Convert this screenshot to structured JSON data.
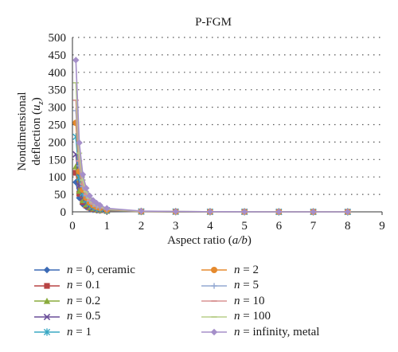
{
  "chart_data": {
    "type": "line",
    "title": "P-FGM",
    "xlabel_main": "Aspect ratio (",
    "xlabel_var": "a/b",
    "xlabel_end": ")",
    "ylabel_line1": "Nondimensional",
    "ylabel_line2_main": "deflection (",
    "ylabel_line2_var": "u",
    "ylabel_line2_sub": "z",
    "ylabel_line2_end": ")",
    "xlim": [
      0,
      9
    ],
    "ylim": [
      0,
      500
    ],
    "xticks": [
      "0",
      "1",
      "2",
      "3",
      "4",
      "5",
      "6",
      "7",
      "8",
      "9"
    ],
    "yticks": [
      "0",
      "50",
      "100",
      "150",
      "200",
      "250",
      "300",
      "350",
      "400",
      "450",
      "500"
    ],
    "grid": "horizontal dotted",
    "legend_position": "bottom",
    "x": [
      0.1,
      0.2,
      0.3,
      0.4,
      0.5,
      0.6,
      0.7,
      0.8,
      1,
      2,
      3,
      4,
      5,
      6,
      7,
      8
    ],
    "series": [
      {
        "name": "n = 0, ceramic",
        "var": "n",
        "rest": " = 0, ceramic",
        "color": "#3b6ab5",
        "marker": "diamond",
        "values": [
          85,
          40,
          22,
          14,
          9,
          6,
          4.5,
          3.5,
          2,
          0.5,
          0.2,
          0.1,
          0.1,
          0,
          0,
          0
        ]
      },
      {
        "name": "n = 0.1",
        "var": "n",
        "rest": " = 0.1",
        "color": "#b84444",
        "marker": "square",
        "values": [
          112,
          52,
          28,
          18,
          12,
          8,
          6,
          4.5,
          2.8,
          0.6,
          0.3,
          0.1,
          0.1,
          0,
          0,
          0
        ]
      },
      {
        "name": "n = 0.2",
        "var": "n",
        "rest": " = 0.2",
        "color": "#8aab3c",
        "marker": "triangle",
        "values": [
          130,
          60,
          33,
          21,
          14,
          10,
          7,
          5.5,
          3.2,
          0.7,
          0.3,
          0.1,
          0.1,
          0,
          0,
          0
        ]
      },
      {
        "name": "n = 0.5",
        "var": "n",
        "rest": " = 0.5",
        "color": "#6a4d99",
        "marker": "x",
        "values": [
          165,
          75,
          41,
          26,
          17,
          12,
          9,
          7,
          4,
          0.9,
          0.4,
          0.2,
          0.1,
          0,
          0,
          0
        ]
      },
      {
        "name": "n = 1",
        "var": "n",
        "rest": " = 1",
        "color": "#3aa8c4",
        "marker": "star",
        "values": [
          215,
          98,
          53,
          34,
          23,
          16,
          12,
          9,
          5,
          1.1,
          0.5,
          0.2,
          0.1,
          0,
          0,
          0
        ]
      },
      {
        "name": "n = 2",
        "var": "n",
        "rest": " = 2",
        "color": "#e58a2e",
        "marker": "circle",
        "values": [
          255,
          116,
          63,
          40,
          27,
          19,
          14,
          11,
          6,
          1.3,
          0.5,
          0.2,
          0.1,
          0,
          0,
          0
        ]
      },
      {
        "name": "n = 5",
        "var": "n",
        "rest": " = 5",
        "color": "#93a9d2",
        "marker": "plus",
        "values": [
          290,
          132,
          72,
          46,
          31,
          22,
          16,
          12,
          7,
          1.5,
          0.6,
          0.3,
          0.1,
          0,
          0,
          0
        ]
      },
      {
        "name": "n = 10",
        "var": "n",
        "rest": " = 10",
        "color": "#d99393",
        "marker": "dash",
        "values": [
          320,
          146,
          79,
          50,
          34,
          24,
          18,
          14,
          7.5,
          1.6,
          0.7,
          0.3,
          0.2,
          0,
          0,
          0
        ]
      },
      {
        "name": "n = 100",
        "var": "n",
        "rest": " = 100",
        "color": "#b8cf8a",
        "marker": "dash",
        "values": [
          370,
          168,
          91,
          58,
          39,
          28,
          21,
          16,
          8.5,
          1.8,
          0.8,
          0.3,
          0.2,
          0,
          0,
          0
        ]
      },
      {
        "name": "n = infinity, metal",
        "var": "n",
        "rest": " = infinity, metal",
        "color": "#a58fc9",
        "marker": "diamond",
        "values": [
          435,
          198,
          107,
          68,
          46,
          33,
          25,
          19,
          10,
          2.2,
          0.9,
          0.4,
          0.2,
          0.1,
          0,
          0
        ]
      }
    ]
  }
}
